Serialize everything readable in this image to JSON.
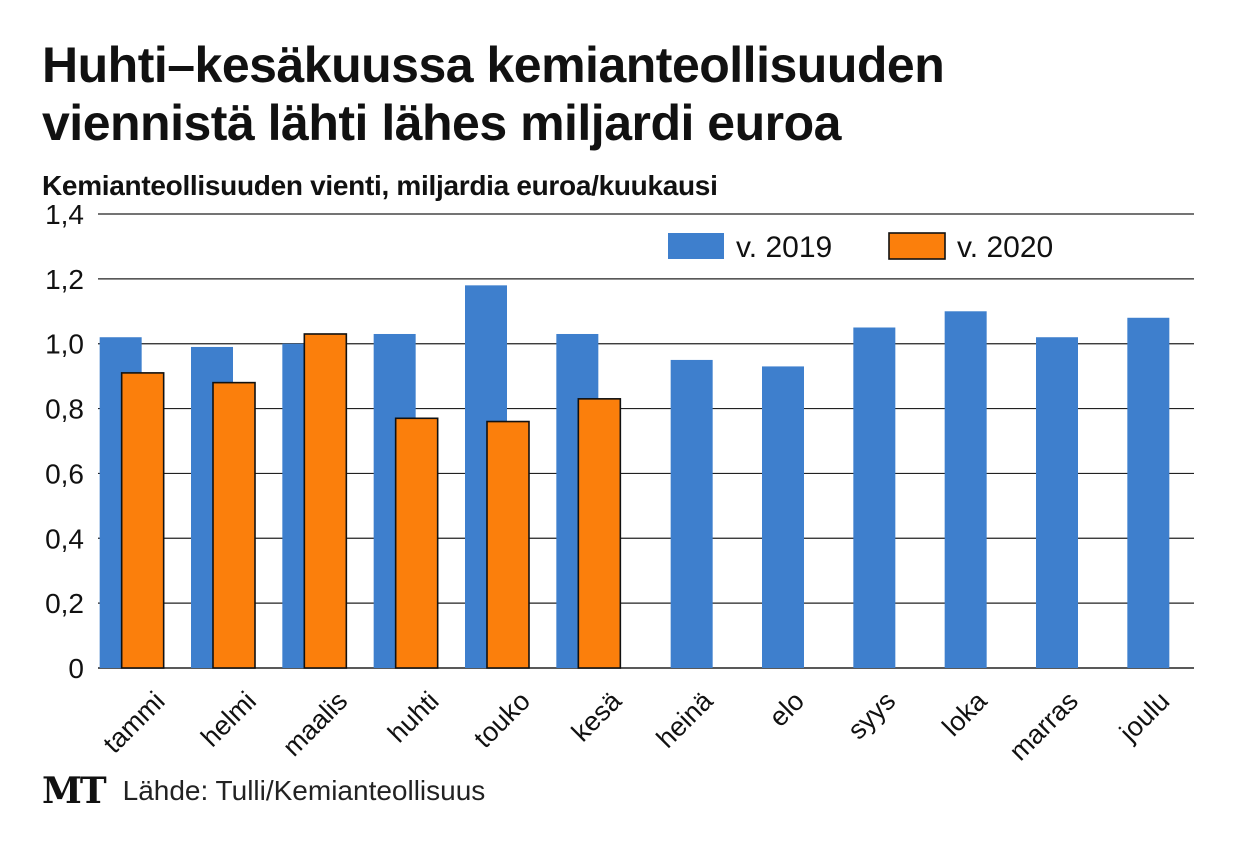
{
  "title_line1": "Huhti–kesäkuussa kemianteollisuuden",
  "title_line2": "viennistä lähti lähes miljardi euroa",
  "subtitle": "Kemianteollisuuden vienti, miljardia euroa/kuukausi",
  "logo": "MT",
  "source": "Lähde: Tulli/Kemianteollisuus",
  "colors": {
    "series_2019": "#3e7fcd",
    "series_2020": "#fb7f0c",
    "grid": "#222222"
  },
  "chart_data": {
    "type": "bar",
    "title": "Huhti–kesäkuussa kemianteollisuuden viennistä lähti lähes miljardi euroa",
    "subtitle": "Kemianteollisuuden vienti, miljardia euroa/kuukausi",
    "categories": [
      "tammi",
      "helmi",
      "maalis",
      "huhti",
      "touko",
      "kesä",
      "heinä",
      "elo",
      "syys",
      "loka",
      "marras",
      "joulu"
    ],
    "series": [
      {
        "name": "v. 2019",
        "values": [
          1.02,
          0.99,
          1.0,
          1.03,
          1.18,
          1.03,
          0.95,
          0.93,
          1.05,
          1.1,
          1.02,
          1.08
        ]
      },
      {
        "name": "v. 2020",
        "values": [
          0.91,
          0.88,
          1.03,
          0.77,
          0.76,
          0.83,
          null,
          null,
          null,
          null,
          null,
          null
        ]
      }
    ],
    "ylim": [
      0,
      1.4
    ],
    "yticks": [
      "0",
      "0,2",
      "0,4",
      "0,6",
      "0,8",
      "1,0",
      "1,2",
      "1,4"
    ],
    "grid": true,
    "legend_position": "top-right"
  }
}
